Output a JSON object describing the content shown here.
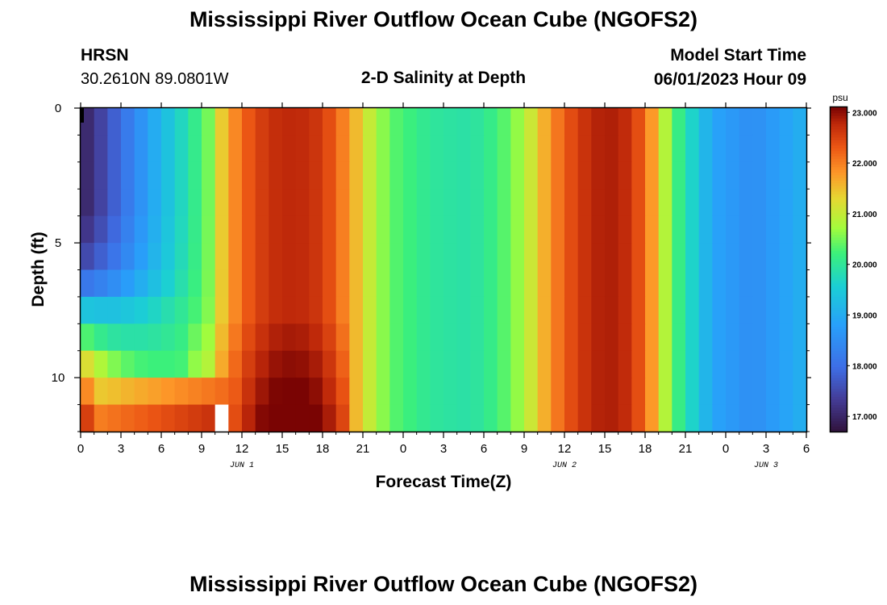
{
  "header": {
    "title": "Mississippi River Outflow Ocean Cube (NGOFS2)",
    "station": "HRSN",
    "coords": "30.2610N  89.0801W",
    "subtitle": "2-D Salinity at Depth",
    "model_start_label": "Model Start Time",
    "model_start_value": "06/01/2023 Hour 09"
  },
  "footer": {
    "title": "Mississippi River Outflow Ocean Cube (NGOFS2)"
  },
  "colors": {
    "background": "#ffffff",
    "axis": "#000000",
    "missing": "#ffffff"
  },
  "chart_data": {
    "type": "heatmap",
    "xlabel": "Forecast Time(Z)",
    "ylabel": "Depth (ft)",
    "x_range_hours": [
      0,
      54
    ],
    "y_range_ft": [
      0,
      12
    ],
    "y_inverted": true,
    "x_tick_labels": [
      "0",
      "3",
      "6",
      "9",
      "12",
      "15",
      "18",
      "21",
      "0",
      "3",
      "6",
      "9",
      "12",
      "15",
      "18",
      "21",
      "0",
      "3",
      "6"
    ],
    "y_tick_labels": [
      "0",
      "5",
      "10"
    ],
    "date_labels": [
      {
        "label": "JUN 1",
        "hour": 12
      },
      {
        "label": "JUN 2",
        "hour": 36
      },
      {
        "label": "JUN 3",
        "hour": 51
      }
    ],
    "colorbar": {
      "unit": "psu",
      "range": [
        16.7,
        23.1
      ],
      "tick_labels": [
        "17.000",
        "18.000",
        "19.000",
        "20.000",
        "21.000",
        "22.000",
        "23.000"
      ],
      "tick_values": [
        17,
        18,
        19,
        20,
        21,
        22,
        23
      ]
    },
    "depth_layers_ft": [
      0.5,
      1.5,
      2.5,
      3.5,
      4.5,
      5.5,
      6.5,
      7.5,
      8.5,
      9.5,
      10.5,
      11.5
    ],
    "time_anchor_hours": [
      0,
      2,
      4,
      6,
      8,
      9.5,
      10.5,
      12,
      14,
      16,
      18,
      20,
      21.5,
      23,
      26,
      29,
      31,
      33,
      35,
      37,
      39,
      41,
      42.5,
      44,
      47,
      50,
      54
    ],
    "surface_salinity": [
      16.9,
      17.6,
      18.4,
      19.2,
      19.9,
      20.5,
      21.4,
      22.2,
      22.7,
      22.8,
      22.6,
      21.8,
      21.0,
      20.4,
      20.0,
      19.9,
      20.2,
      20.8,
      21.9,
      22.6,
      22.9,
      22.7,
      21.8,
      20.4,
      18.9,
      18.5,
      19.1
    ],
    "layer_offset": [
      {
        "layer": 0,
        "start": 0.0
      },
      {
        "layer": 1,
        "start": 0.0
      },
      {
        "layer": 2,
        "start": 0.0
      },
      {
        "layer": 3,
        "start": 0.0
      },
      {
        "layer": 4,
        "start": 0.2
      },
      {
        "layer": 5,
        "start": 0.5
      },
      {
        "layer": 6,
        "start": 1.2
      },
      {
        "layer": 7,
        "start": 2.6
      },
      {
        "layer": 8,
        "start": 3.6
      },
      {
        "layer": 9,
        "start": 4.6
      },
      {
        "layer": 10,
        "start": 5.4
      },
      {
        "layer": 11,
        "start": 6.1
      }
    ],
    "missing_cells": [
      {
        "hour": 10.5,
        "layer": 11
      },
      {
        "hour": 0,
        "layer": 0
      }
    ]
  }
}
